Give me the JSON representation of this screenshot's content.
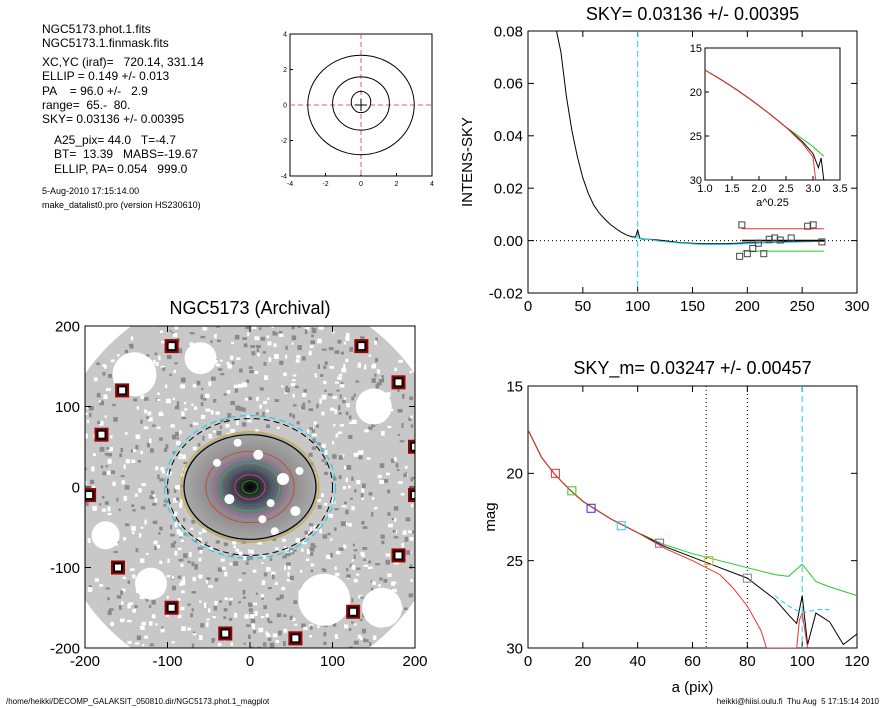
{
  "info": {
    "lines": [
      "NGC5173.phot.1.fits",
      "NGC5173.1.finmask.fits",
      "XC,YC (iraf)=   720.14, 331.14",
      "ELLIP = 0.149 +/- 0.013",
      "PA    = 96.0 +/-   2.9",
      "range=  65.-  80.",
      "SKY= 0.03136 +/- 0.00395",
      "A25_pix= 44.0   T=-4.7",
      "BT=  13.39   MABS=-19.67",
      "ELLIP, PA= 0.054   999.0",
      "5-Aug-2010 17:15:14.00",
      "make_datalist0.pro (version HS230610)"
    ]
  },
  "footer": {
    "left": "/home/heikki/DECOMP_GALAKSIT_050810.dir/NGC5173.phot.1_magplot",
    "right": "heikki@hiisi.oulu.fi  Thu Aug  5 17:15:14 2010"
  },
  "colors": {
    "cyan": "#22ccee",
    "red": "#ee3333",
    "green": "#22cc22",
    "blue": "#2233dd",
    "purple": "#bb44bb",
    "black": "#000000",
    "grey": "#888888"
  },
  "chart_data": [
    {
      "id": "contour-plot",
      "type": "scatter",
      "title": "",
      "xlim": [
        -4,
        4
      ],
      "ylim": [
        -4,
        4
      ],
      "xticks": [
        "-4",
        "-2",
        "0",
        "2",
        "4"
      ],
      "yticks": [
        "-4",
        "-2",
        "0",
        "2",
        "4"
      ],
      "center_cross": [
        0,
        0
      ]
    },
    {
      "id": "sky-plot",
      "type": "line",
      "title": "SKY= 0.03136 +/- 0.00395",
      "xlabel": "",
      "ylabel": "INTENS-SKY",
      "xlim": [
        0,
        300
      ],
      "ylim": [
        -0.02,
        0.08
      ],
      "xticks": [
        "0",
        "50",
        "100",
        "150",
        "200",
        "250",
        "300"
      ],
      "yticks": [
        "-0.02",
        "0.00",
        "0.02",
        "0.04",
        "0.06",
        "0.08"
      ],
      "vline": 100,
      "series": [
        {
          "color": "black",
          "x": [
            26,
            30,
            35,
            40,
            45,
            50,
            55,
            60,
            65,
            70,
            75,
            80,
            85,
            90,
            95,
            98,
            100,
            102,
            105,
            110,
            120,
            140,
            160,
            180,
            200,
            220,
            240,
            260,
            270
          ],
          "y": [
            0.08,
            0.072,
            0.055,
            0.042,
            0.032,
            0.024,
            0.018,
            0.0135,
            0.0105,
            0.0082,
            0.0062,
            0.0046,
            0.0032,
            0.0021,
            0.0014,
            0.0014,
            0.004,
            0.0008,
            0.0006,
            0.0005,
            0.0002,
            -0.0008,
            -0.0012,
            -0.0012,
            -0.0008,
            -0.0008,
            -0.0004,
            -0.0002,
            -0.0002
          ]
        },
        {
          "color": "cyan",
          "x": [
            95,
            105,
            120,
            140,
            160,
            180,
            200,
            220,
            240,
            260
          ],
          "y": [
            0.0012,
            0.0008,
            -0.0002,
            -0.001,
            -0.0015,
            -0.0015,
            -0.0012,
            -0.0008,
            -0.0006,
            -0.0004
          ]
        },
        {
          "color": "black",
          "x": [
            195,
            270
          ],
          "y": [
            0.0,
            0.0
          ]
        },
        {
          "color": "red",
          "x": [
            195,
            270
          ],
          "y": [
            0.0045,
            0.0045
          ]
        },
        {
          "color": "green",
          "x": [
            195,
            270
          ],
          "y": [
            -0.004,
            -0.004
          ]
        }
      ],
      "markers": [
        {
          "x": 195,
          "y": 0.006
        },
        {
          "x": 193,
          "y": -0.006
        },
        {
          "x": 200,
          "y": -0.005
        },
        {
          "x": 205,
          "y": -0.003
        },
        {
          "x": 210,
          "y": -0.001
        },
        {
          "x": 215,
          "y": -0.005
        },
        {
          "x": 220,
          "y": 0.0005
        },
        {
          "x": 225,
          "y": 0.001
        },
        {
          "x": 230,
          "y": 0.0002
        },
        {
          "x": 240,
          "y": 0.001
        },
        {
          "x": 255,
          "y": 0.0055
        },
        {
          "x": 260,
          "y": 0.006
        },
        {
          "x": 268,
          "y": -0.0005
        }
      ],
      "inset": {
        "xlabel": "a^0.25",
        "xlim": [
          1.0,
          3.5
        ],
        "ylim": [
          15,
          30
        ],
        "xticks": [
          "1.0",
          "1.5",
          "2.0",
          "2.5",
          "3.0",
          "3.5"
        ],
        "yticks": [
          "15",
          "20",
          "25",
          "30"
        ],
        "series": [
          {
            "color": "green",
            "x": [
              1.0,
              1.3,
              1.6,
              1.9,
              2.2,
              2.5,
              2.8,
              3.0,
              3.2
            ],
            "y": [
              17.5,
              18.6,
              19.8,
              21.1,
              22.5,
              24.0,
              25.3,
              26.2,
              27.3
            ]
          },
          {
            "color": "black",
            "x": [
              1.0,
              1.3,
              1.6,
              1.9,
              2.2,
              2.5,
              2.8,
              3.0,
              3.1,
              3.15,
              3.2
            ],
            "y": [
              17.5,
              18.6,
              19.8,
              21.1,
              22.5,
              24.0,
              25.6,
              27.0,
              28.6,
              27.5,
              30
            ]
          },
          {
            "color": "red",
            "x": [
              1.0,
              1.3,
              1.6,
              1.9,
              2.2,
              2.5,
              2.8,
              3.0,
              3.05
            ],
            "y": [
              17.5,
              18.6,
              19.8,
              21.1,
              22.5,
              24.0,
              25.8,
              27.4,
              30
            ]
          }
        ]
      }
    },
    {
      "id": "galaxy-image",
      "type": "scatter",
      "title": "NGC5173 (Archival)",
      "xlim": [
        -200,
        200
      ],
      "ylim": [
        -200,
        200
      ],
      "xticks": [
        "-200",
        "-100",
        "0",
        "100",
        "200"
      ],
      "yticks": [
        "-200",
        "-100",
        "0",
        "100",
        "200"
      ],
      "ellipse_outer": {
        "a": 100,
        "b": 85
      },
      "ellipse_inner": {
        "a": 80,
        "b": 65
      },
      "masked_stars": [
        {
          "x": -95,
          "y": 175
        },
        {
          "x": 135,
          "y": 175
        },
        {
          "x": -155,
          "y": 120
        },
        {
          "x": 180,
          "y": 130
        },
        {
          "x": -180,
          "y": 65
        },
        {
          "x": 200,
          "y": 50
        },
        {
          "x": -195,
          "y": -10
        },
        {
          "x": 200,
          "y": -10
        },
        {
          "x": -160,
          "y": -100
        },
        {
          "x": 180,
          "y": -85
        },
        {
          "x": -95,
          "y": -150
        },
        {
          "x": 125,
          "y": -155
        },
        {
          "x": -30,
          "y": -182
        },
        {
          "x": 55,
          "y": -188
        }
      ]
    },
    {
      "id": "mag-plot",
      "type": "line",
      "title": "SKY_m=  0.03247 +/- 0.00457",
      "xlabel": "a (pix)",
      "ylabel": "mag",
      "xlim": [
        0,
        120
      ],
      "ylim": [
        15,
        30
      ],
      "xticks": [
        "0",
        "20",
        "40",
        "60",
        "80",
        "100",
        "120"
      ],
      "yticks": [
        "15",
        "20",
        "25",
        "30"
      ],
      "vlines_dotted": [
        65,
        80
      ],
      "vline_cyan": 100,
      "series": [
        {
          "color": "green",
          "x": [
            0,
            5,
            10,
            15,
            20,
            30,
            40,
            50,
            60,
            70,
            80,
            90,
            95,
            100,
            105,
            110,
            120
          ],
          "y": [
            17.5,
            19.1,
            20.1,
            20.9,
            21.6,
            22.6,
            23.4,
            24.1,
            24.6,
            25.0,
            25.4,
            25.8,
            25.9,
            25.2,
            26.2,
            26.5,
            27.0
          ]
        },
        {
          "color": "black",
          "x": [
            0,
            5,
            10,
            15,
            20,
            30,
            40,
            50,
            60,
            70,
            80,
            90,
            95,
            98,
            100,
            102,
            105,
            110,
            115,
            120
          ],
          "y": [
            17.5,
            19.1,
            20.1,
            20.9,
            21.6,
            22.6,
            23.4,
            24.2,
            24.8,
            25.4,
            26.0,
            27.2,
            28.1,
            28.6,
            27.0,
            29.8,
            28.0,
            28.5,
            29.8,
            29.2
          ]
        },
        {
          "color": "red",
          "x": [
            0,
            5,
            10,
            15,
            20,
            30,
            40,
            50,
            60,
            70,
            75,
            80,
            85,
            87,
            98,
            99,
            100,
            101,
            102
          ],
          "y": [
            17.5,
            19.1,
            20.1,
            20.9,
            21.6,
            22.6,
            23.4,
            24.3,
            25.0,
            25.8,
            26.6,
            27.6,
            29.0,
            30,
            30,
            28.4,
            28.0,
            29.0,
            30
          ]
        },
        {
          "color": "cyan",
          "x": [
            90,
            95,
            100,
            105,
            110
          ],
          "y": [
            27.0,
            27.6,
            28.0,
            27.8,
            27.8
          ]
        }
      ],
      "markers": [
        {
          "x": 10,
          "y": 20.0,
          "color": "red"
        },
        {
          "x": 16,
          "y": 21.0,
          "color": "green"
        },
        {
          "x": 23,
          "y": 22.0,
          "color": "blue"
        },
        {
          "x": 34,
          "y": 23.0,
          "color": "cyan"
        },
        {
          "x": 48,
          "y": 24.0,
          "color": "purple"
        },
        {
          "x": 66,
          "y": 25.0,
          "color": "yellow"
        },
        {
          "x": 80,
          "y": 26.0,
          "color": "grey"
        }
      ]
    }
  ]
}
